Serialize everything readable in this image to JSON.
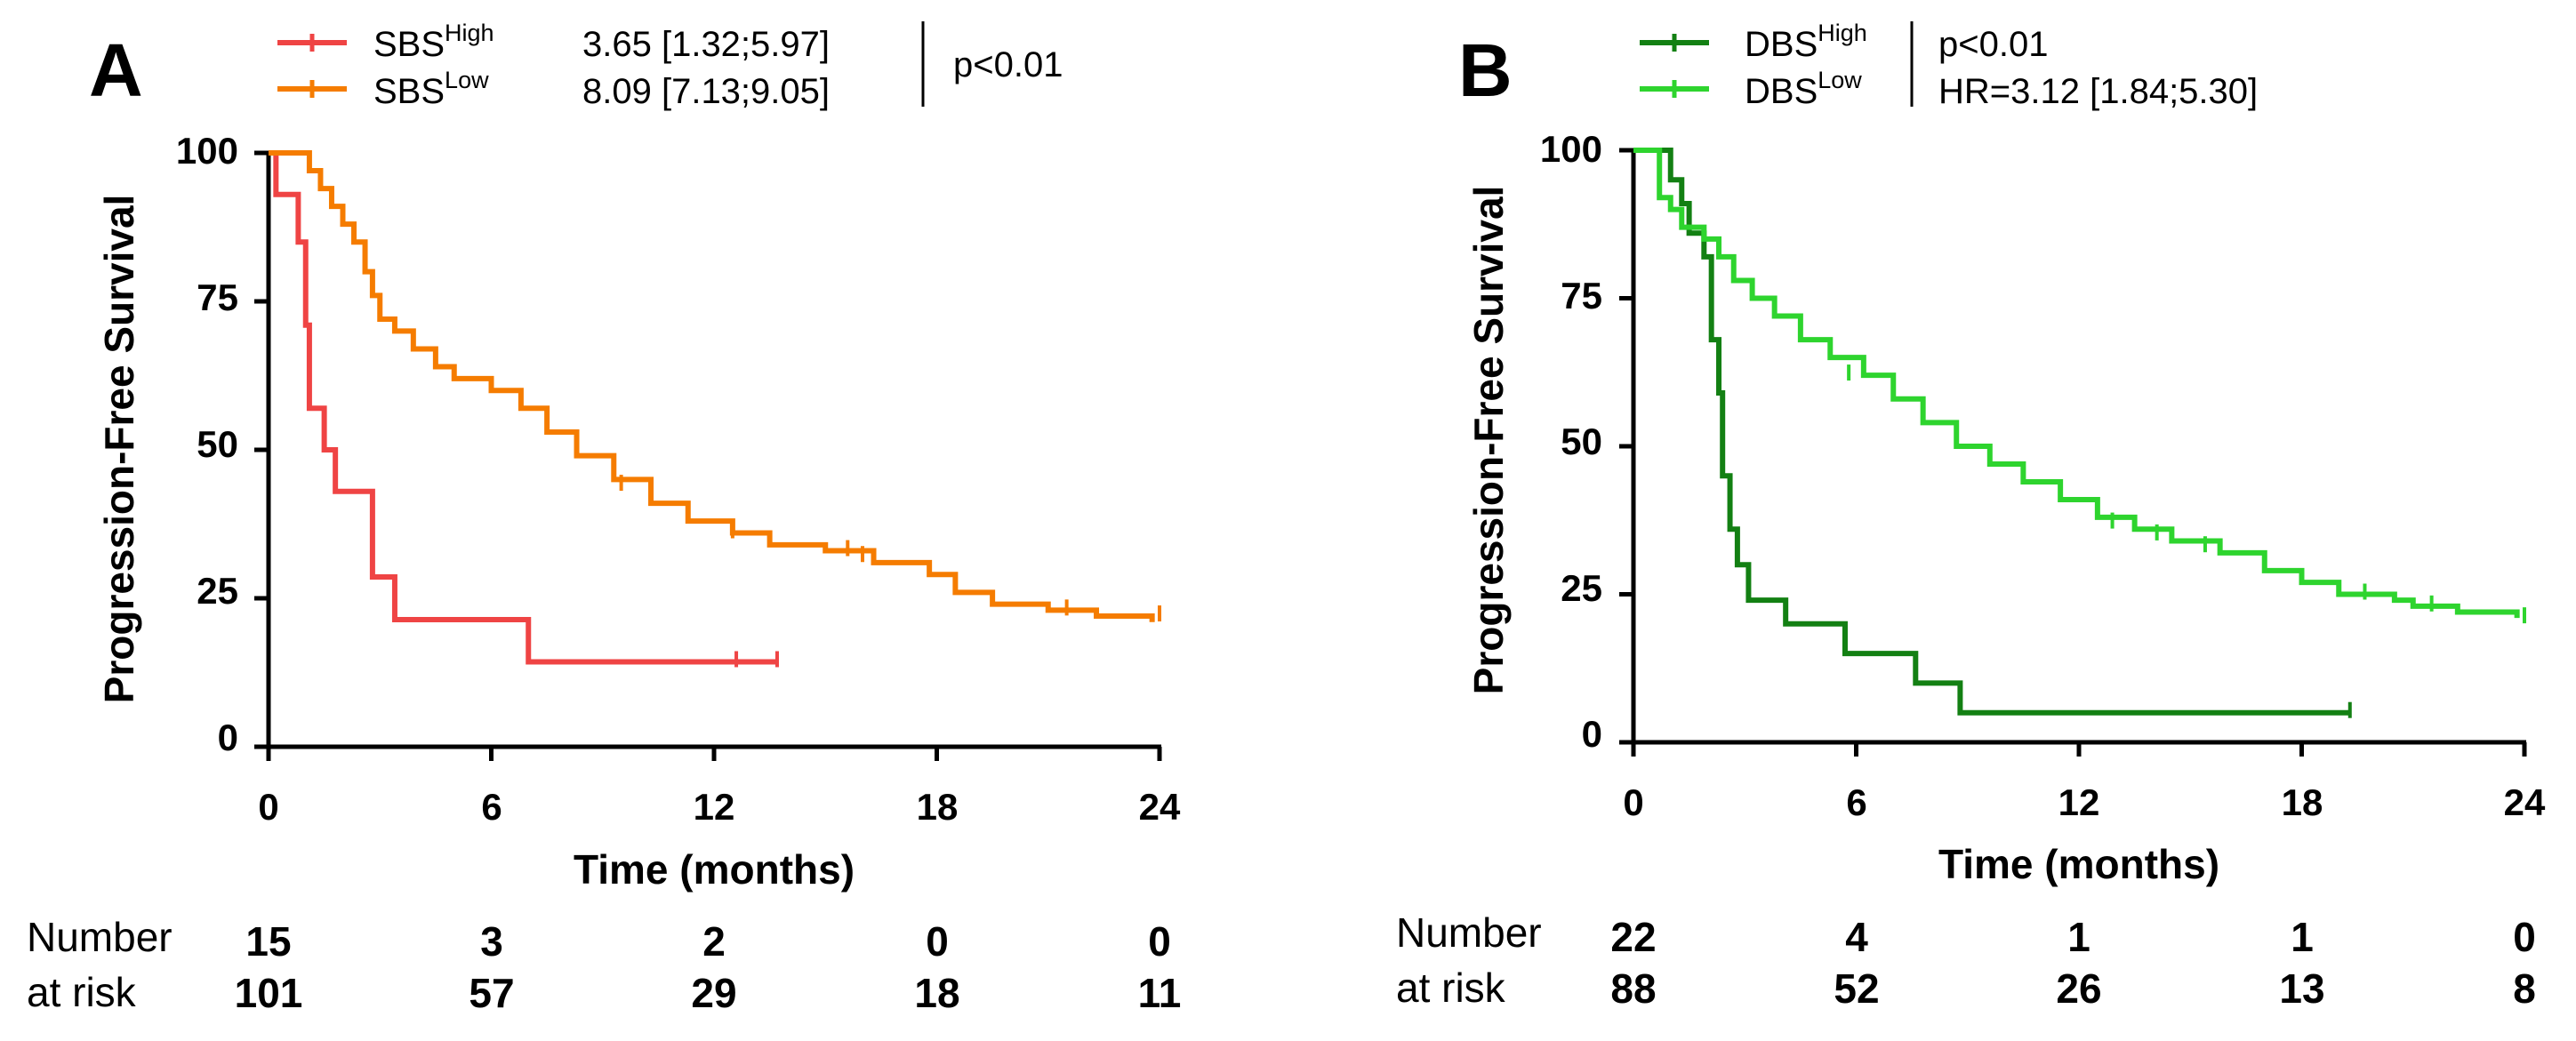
{
  "colors": {
    "sbs_high": "#ef4444",
    "sbs_low": "#f57c00",
    "dbs_high": "#138013",
    "dbs_low": "#2ed42e",
    "axis": "#000000"
  },
  "panels": {
    "A": {
      "letter": "A",
      "legend": {
        "high_base": "SBS",
        "high_sup": "High",
        "low_base": "SBS",
        "low_sup": "Low",
        "high_ci": "3.65 [1.32;5.97]",
        "low_ci": "8.09 [7.13;9.05]",
        "pvalue": "p<0.01"
      },
      "ylabel": "Progression-Free Survival",
      "xlabel": "Time (months)",
      "yticks": [
        "0",
        "25",
        "50",
        "75",
        "100"
      ],
      "xticks": [
        "0",
        "6",
        "12",
        "18",
        "24"
      ],
      "risk": {
        "label_1": "Number",
        "label_2": "at risk",
        "high": [
          "15",
          "3",
          "2",
          "0",
          "0"
        ],
        "low": [
          "101",
          "57",
          "29",
          "18",
          "11"
        ]
      }
    },
    "B": {
      "letter": "B",
      "legend": {
        "high_base": "DBS",
        "high_sup": "High",
        "low_base": "DBS",
        "low_sup": "Low",
        "pvalue": "p<0.01",
        "hr": "HR=3.12 [1.84;5.30]"
      },
      "ylabel": "Progression-Free Survival",
      "xlabel": "Time (months)",
      "yticks": [
        "0",
        "25",
        "50",
        "75",
        "100"
      ],
      "xticks": [
        "0",
        "6",
        "12",
        "18",
        "24"
      ],
      "risk": {
        "label_1": "Number",
        "label_2": "at risk",
        "high": [
          "22",
          "4",
          "1",
          "1",
          "0"
        ],
        "low": [
          "88",
          "52",
          "26",
          "13",
          "8"
        ]
      }
    }
  },
  "chart_data": [
    {
      "type": "line",
      "step": true,
      "title": "",
      "xlabel": "Time (months)",
      "ylabel": "Progression-Free Survival",
      "xlim": [
        0,
        24
      ],
      "ylim": [
        0,
        100
      ],
      "xticks": [
        0,
        6,
        12,
        18,
        24
      ],
      "yticks": [
        0,
        25,
        50,
        75,
        100
      ],
      "series": [
        {
          "name": "SBSHigh",
          "color": "#ef4444",
          "x": [
            0,
            0.2,
            0.8,
            1.0,
            1.1,
            1.5,
            1.8,
            2.8,
            3.4,
            7.0,
            13.7
          ],
          "y": [
            100,
            93,
            85,
            71,
            57,
            50,
            43,
            28.6,
            21.4,
            14.3,
            14.3
          ],
          "censored": [
            [
              12.6,
              14.3
            ],
            [
              13.7,
              14.3
            ]
          ]
        },
        {
          "name": "SBSLow",
          "color": "#f57c00",
          "x": [
            0,
            1.1,
            1.4,
            1.7,
            2.0,
            2.3,
            2.6,
            2.8,
            3.0,
            3.4,
            3.9,
            4.5,
            5.0,
            6.0,
            6.8,
            7.5,
            8.3,
            9.3,
            10.3,
            11.3,
            12.5,
            13.5,
            15.0,
            16.3,
            17.8,
            18.5,
            19.5,
            21.0,
            22.3,
            23.8
          ],
          "y": [
            100,
            97,
            94,
            91,
            88,
            85,
            80,
            76,
            72,
            70,
            67,
            64,
            62,
            60,
            57,
            53,
            49,
            45,
            41,
            38,
            36,
            34,
            33,
            31,
            29,
            26,
            24,
            23,
            22,
            21
          ],
          "censored": [
            [
              9.5,
              44
            ],
            [
              12.5,
              36
            ],
            [
              15.6,
              33
            ],
            [
              16.0,
              32
            ],
            [
              21.5,
              23
            ],
            [
              24,
              22
            ]
          ]
        }
      ],
      "risk_table": {
        "times": [
          0,
          6,
          12,
          18,
          24
        ],
        "SBSHigh": [
          15,
          3,
          2,
          0,
          0
        ],
        "SBSLow": [
          101,
          57,
          29,
          18,
          11
        ]
      },
      "annotations": [
        "3.65 [1.32;5.97]",
        "8.09 [7.13;9.05]",
        "p<0.01"
      ]
    },
    {
      "type": "line",
      "step": true,
      "title": "",
      "xlabel": "Time (months)",
      "ylabel": "Progression-Free Survival",
      "xlim": [
        0,
        24
      ],
      "ylim": [
        0,
        100
      ],
      "xticks": [
        0,
        6,
        12,
        18,
        24
      ],
      "yticks": [
        0,
        25,
        50,
        75,
        100
      ],
      "series": [
        {
          "name": "DBSHigh",
          "color": "#138013",
          "x": [
            0,
            1.0,
            1.3,
            1.5,
            1.9,
            2.1,
            2.3,
            2.4,
            2.6,
            2.8,
            3.1,
            4.1,
            5.7,
            7.6,
            8.8,
            19.3
          ],
          "y": [
            100,
            95,
            91,
            86,
            82,
            68,
            59,
            45,
            36,
            30,
            24,
            20,
            15,
            10,
            5,
            5
          ],
          "censored": [
            [
              19.3,
              5
            ]
          ]
        },
        {
          "name": "DBSLow",
          "color": "#2ed42e",
          "x": [
            0,
            0.7,
            1.0,
            1.3,
            1.9,
            2.3,
            2.7,
            3.2,
            3.8,
            4.5,
            5.3,
            6.2,
            7.0,
            7.8,
            8.7,
            9.6,
            10.5,
            11.5,
            12.5,
            13.5,
            14.5,
            15.8,
            17.0,
            18.0,
            19.0,
            20.5,
            21.0,
            22.2,
            23.8
          ],
          "y": [
            100,
            92,
            90,
            87,
            85,
            82,
            78,
            75,
            72,
            68,
            65,
            62,
            58,
            54,
            50,
            47,
            44,
            41,
            38,
            36,
            34,
            32,
            29,
            27,
            25,
            24,
            23,
            22,
            21
          ],
          "censored": [
            [
              5.8,
              62
            ],
            [
              12.9,
              37
            ],
            [
              14.1,
              35
            ],
            [
              15.4,
              33
            ],
            [
              19.7,
              25
            ],
            [
              21.5,
              23
            ],
            [
              24,
              21
            ]
          ]
        }
      ],
      "risk_table": {
        "times": [
          0,
          6,
          12,
          18,
          24
        ],
        "DBSHigh": [
          22,
          4,
          1,
          1,
          0
        ],
        "DBSLow": [
          88,
          52,
          26,
          13,
          8
        ]
      },
      "annotations": [
        "p<0.01",
        "HR=3.12 [1.84;5.30]"
      ]
    }
  ]
}
